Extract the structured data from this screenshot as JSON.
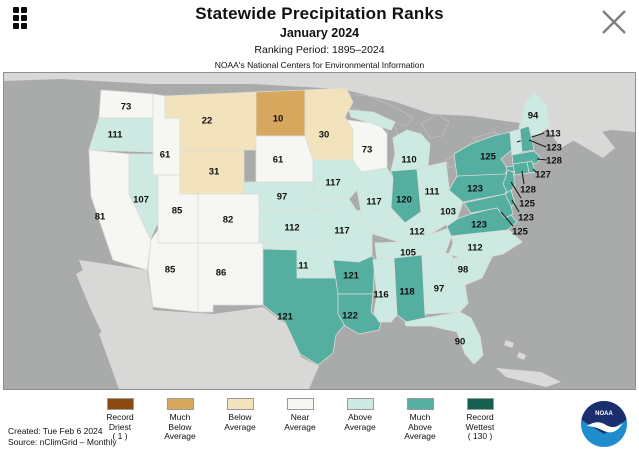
{
  "header": {
    "title": "Statewide Precipitation Ranks",
    "subtitle": "January 2024",
    "ranking_period": "Ranking Period: 1895–2024",
    "organization": "NOAA's National Centers for Environmental Information"
  },
  "chart_data": {
    "type": "heatmap",
    "subtype": "choropleth-us-states",
    "title": "Statewide Precipitation Ranks",
    "subtitle": "January 2024",
    "ranking_period": "Ranking Period: 1895-2024",
    "rank_scale": [
      1,
      130
    ],
    "states": [
      {
        "id": "WA",
        "name": "Washington",
        "rank": 73,
        "category": "near"
      },
      {
        "id": "OR",
        "name": "Oregon",
        "rank": 111,
        "category": "above"
      },
      {
        "id": "CA",
        "name": "California",
        "rank": 81,
        "category": "near"
      },
      {
        "id": "NV",
        "name": "Nevada",
        "rank": 107,
        "category": "above"
      },
      {
        "id": "ID",
        "name": "Idaho",
        "rank": 61,
        "category": "near"
      },
      {
        "id": "MT",
        "name": "Montana",
        "rank": 22,
        "category": "below"
      },
      {
        "id": "WY",
        "name": "Wyoming",
        "rank": 31,
        "category": "below"
      },
      {
        "id": "UT",
        "name": "Utah",
        "rank": 85,
        "category": "near"
      },
      {
        "id": "CO",
        "name": "Colorado",
        "rank": 82,
        "category": "near"
      },
      {
        "id": "AZ",
        "name": "Arizona",
        "rank": 85,
        "category": "near"
      },
      {
        "id": "NM",
        "name": "New Mexico",
        "rank": 86,
        "category": "near"
      },
      {
        "id": "ND",
        "name": "North Dakota",
        "rank": 10,
        "category": "much_below"
      },
      {
        "id": "SD",
        "name": "South Dakota",
        "rank": 61,
        "category": "near"
      },
      {
        "id": "NE",
        "name": "Nebraska",
        "rank": 97,
        "category": "above"
      },
      {
        "id": "KS",
        "name": "Kansas",
        "rank": 112,
        "category": "above"
      },
      {
        "id": "OK",
        "name": "Oklahoma",
        "rank": 111,
        "category": "above"
      },
      {
        "id": "TX",
        "name": "Texas",
        "rank": 121,
        "category": "much_above"
      },
      {
        "id": "MN",
        "name": "Minnesota",
        "rank": 30,
        "category": "below"
      },
      {
        "id": "IA",
        "name": "Iowa",
        "rank": 117,
        "category": "above"
      },
      {
        "id": "MO",
        "name": "Missouri",
        "rank": 117,
        "category": "above"
      },
      {
        "id": "AR",
        "name": "Arkansas",
        "rank": 121,
        "category": "much_above"
      },
      {
        "id": "LA",
        "name": "Louisiana",
        "rank": 122,
        "category": "much_above"
      },
      {
        "id": "WI",
        "name": "Wisconsin",
        "rank": 73,
        "category": "near"
      },
      {
        "id": "IL",
        "name": "Illinois",
        "rank": 117,
        "category": "above"
      },
      {
        "id": "MI",
        "name": "Michigan",
        "rank": 110,
        "category": "above"
      },
      {
        "id": "IN",
        "name": "Indiana",
        "rank": 120,
        "category": "much_above"
      },
      {
        "id": "OH",
        "name": "Ohio",
        "rank": 111,
        "category": "above"
      },
      {
        "id": "KY",
        "name": "Kentucky",
        "rank": 112,
        "category": "above"
      },
      {
        "id": "TN",
        "name": "Tennessee",
        "rank": 105,
        "category": "above"
      },
      {
        "id": "MS",
        "name": "Mississippi",
        "rank": 116,
        "category": "above"
      },
      {
        "id": "AL",
        "name": "Alabama",
        "rank": 118,
        "category": "much_above"
      },
      {
        "id": "GA",
        "name": "Georgia",
        "rank": 97,
        "category": "above"
      },
      {
        "id": "FL",
        "name": "Florida",
        "rank": 90,
        "category": "above"
      },
      {
        "id": "SC",
        "name": "South Carolina",
        "rank": 98,
        "category": "above"
      },
      {
        "id": "NC",
        "name": "North Carolina",
        "rank": 112,
        "category": "above"
      },
      {
        "id": "VA",
        "name": "Virginia",
        "rank": 123,
        "category": "much_above"
      },
      {
        "id": "WV",
        "name": "West Virginia",
        "rank": 103,
        "category": "above"
      },
      {
        "id": "PA",
        "name": "Pennsylvania",
        "rank": 123,
        "category": "much_above"
      },
      {
        "id": "NY",
        "name": "New York",
        "rank": 125,
        "category": "much_above"
      },
      {
        "id": "ME",
        "name": "Maine",
        "rank": 94,
        "category": "above"
      },
      {
        "id": "VT",
        "name": "Vermont",
        "rank": 113,
        "category": "above"
      },
      {
        "id": "NH",
        "name": "New Hampshire",
        "rank": 123,
        "category": "much_above"
      },
      {
        "id": "MA",
        "name": "Massachusetts",
        "rank": 128,
        "category": "much_above"
      },
      {
        "id": "RI",
        "name": "Rhode Island",
        "rank": 127,
        "category": "much_above"
      },
      {
        "id": "CT",
        "name": "Connecticut",
        "rank": 128,
        "category": "much_above"
      },
      {
        "id": "NJ",
        "name": "New Jersey",
        "rank": 125,
        "category": "much_above"
      },
      {
        "id": "DE",
        "name": "Delaware",
        "rank": 123,
        "category": "much_above"
      },
      {
        "id": "MD",
        "name": "Maryland",
        "rank": 125,
        "category": "much_above"
      }
    ]
  },
  "category_colors": {
    "record_driest": "#8a4a10",
    "much_below": "#d6a75c",
    "below": "#f2e3bc",
    "near": "#f6f6f3",
    "above": "#cceae1",
    "much_above": "#55afa1",
    "record_wettest": "#16604f"
  },
  "legend": {
    "items": [
      {
        "category": "record_driest",
        "label": "Record\nDriest\n( 1 )"
      },
      {
        "category": "much_below",
        "label": "Much\nBelow\nAverage"
      },
      {
        "category": "below",
        "label": "Below\nAverage"
      },
      {
        "category": "near",
        "label": "Near\nAverage"
      },
      {
        "category": "above",
        "label": "Above\nAverage"
      },
      {
        "category": "much_above",
        "label": "Much\nAbove\nAverage"
      },
      {
        "category": "record_wettest",
        "label": "Record\nWettest\n( 130 )"
      }
    ]
  },
  "footer": {
    "created": "Created: Tue Feb 6 2024",
    "source": "Source: nClimGrid – Monthly"
  },
  "logo": {
    "text": "NOAA"
  }
}
